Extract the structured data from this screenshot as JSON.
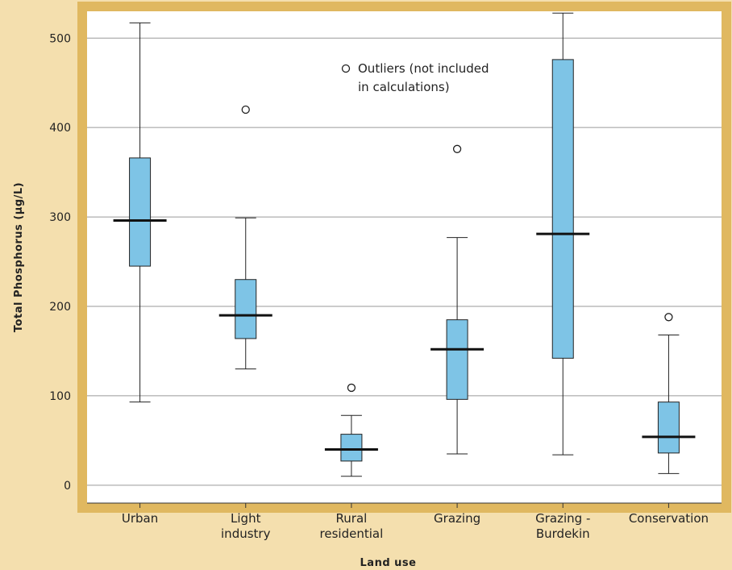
{
  "chart_data": {
    "type": "boxplot",
    "title": "",
    "xlabel": "Land use",
    "ylabel": "Total Phosphorus (µg/L)",
    "ylim": [
      -20,
      530
    ],
    "yticks": [
      0,
      100,
      200,
      300,
      400,
      500
    ],
    "grid": true,
    "legend": {
      "position": "top-center",
      "lines": [
        "Outliers (not included",
        "in calculations)"
      ]
    },
    "colors": {
      "box_fill": "#7ec4e6",
      "page_background": "#f4dfae",
      "plot_background": "#ffffff",
      "frame": "#e0b860",
      "gridline": "#9a9a9a"
    },
    "categories": [
      {
        "label": [
          "Urban"
        ],
        "whisker_low": 93,
        "q1": 245,
        "median": 296,
        "q3": 366,
        "whisker_high": 517,
        "outliers": []
      },
      {
        "label": [
          "Light",
          "industry"
        ],
        "whisker_low": 130,
        "q1": 164,
        "median": 190,
        "q3": 230,
        "whisker_high": 299,
        "outliers": [
          420
        ]
      },
      {
        "label": [
          "Rural",
          "residential"
        ],
        "whisker_low": 10,
        "q1": 27,
        "median": 40,
        "q3": 57,
        "whisker_high": 78,
        "outliers": [
          109
        ]
      },
      {
        "label": [
          "Grazing"
        ],
        "whisker_low": 35,
        "q1": 96,
        "median": 152,
        "q3": 185,
        "whisker_high": 277,
        "outliers": [
          376
        ]
      },
      {
        "label": [
          "Grazing -",
          "Burdekin"
        ],
        "whisker_low": 34,
        "q1": 142,
        "median": 281,
        "q3": 476,
        "whisker_high": 528,
        "outliers": []
      },
      {
        "label": [
          "Conservation"
        ],
        "whisker_low": 13,
        "q1": 36,
        "median": 54,
        "q3": 93,
        "whisker_high": 168,
        "outliers": [
          188
        ]
      }
    ]
  }
}
